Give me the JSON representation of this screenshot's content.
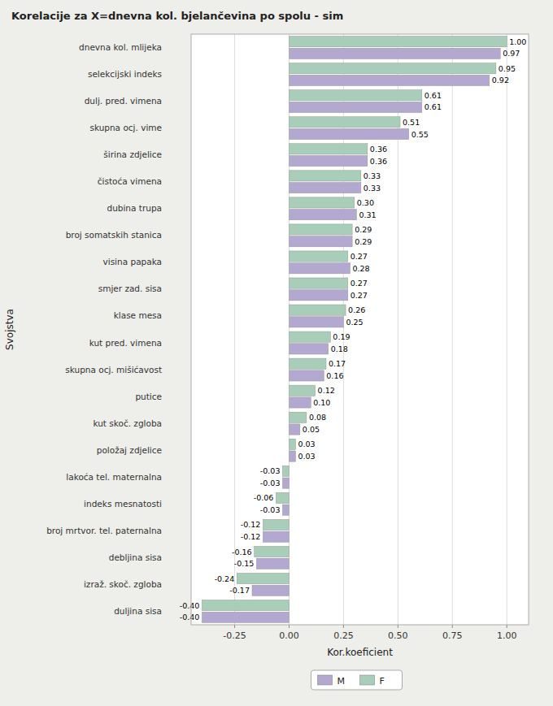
{
  "chart_data": {
    "type": "bar",
    "orientation": "horizontal",
    "title": "Korelacije za X=dnevna kol. bjelančevina po spolu - sim",
    "x_label": "Kor.koeficient",
    "y_label": "Svojstva",
    "categories": [
      "duljina sisa",
      "izraž. skoč. zgloba",
      "debljina sisa",
      "broj mrtvor. tel. paternalna",
      "indeks mesnatosti",
      "lakoća tel. maternalna",
      "položaj zdjelice",
      "kut skoč. zgloba",
      "putice",
      "skupna ocj. mišićavost",
      "kut pred. vimena",
      "klase mesa",
      "smjer zad. sisa",
      "visina papaka",
      "broj somatskih stanica",
      "dubina trupa",
      "čistoća vimena",
      "širina zdjelice",
      "skupna ocj. vime",
      "dulj. pred. vimena",
      "selekcijski indeks",
      "dnevna kol. mlijeka"
    ],
    "series": [
      {
        "name": "M",
        "color": "#b3a8d0",
        "values": [
          -0.4,
          -0.17,
          -0.15,
          -0.12,
          -0.03,
          -0.03,
          0.03,
          0.05,
          0.1,
          0.16,
          0.18,
          0.25,
          0.27,
          0.28,
          0.29,
          0.31,
          0.33,
          0.36,
          0.55,
          0.61,
          0.92,
          0.97
        ],
        "value_labels": [
          "-0.40",
          "-0.17",
          "-0.15",
          "-0.12",
          "-0.03",
          "-0.03",
          "0.03",
          "0.05",
          "0.10",
          "0.16",
          "0.18",
          "0.25",
          "0.27",
          "0.28",
          "0.29",
          "0.31",
          "0.33",
          "0.36",
          "0.55",
          "0.61",
          "0.92",
          "0.97"
        ]
      },
      {
        "name": "F",
        "color": "#a8cdb8",
        "values": [
          -0.4,
          -0.24,
          -0.16,
          -0.12,
          -0.06,
          -0.03,
          0.03,
          0.08,
          0.12,
          0.17,
          0.19,
          0.26,
          0.27,
          0.27,
          0.29,
          0.3,
          0.33,
          0.36,
          0.51,
          0.61,
          0.95,
          1.0
        ],
        "value_labels": [
          "-0.40",
          "-0.24",
          "-0.16",
          "-0.12",
          "-0.06",
          "-0.03",
          "0.03",
          "0.08",
          "0.12",
          "0.17",
          "0.19",
          "0.26",
          "0.27",
          "0.27",
          "0.29",
          "0.30",
          "0.33",
          "0.36",
          "0.51",
          "0.61",
          "0.95",
          "1.00"
        ]
      }
    ],
    "xlim": [
      -0.45,
      1.1
    ],
    "xticks": [
      -0.25,
      {
        "value": 0.0,
        "label": "0.00"
      },
      0.25,
      {
        "value": 0.5,
        "label": "0.50"
      },
      0.75,
      {
        "value": 1.0,
        "label": "1.00"
      }
    ],
    "grid": true,
    "data_labels": true,
    "legend": "bottom"
  }
}
